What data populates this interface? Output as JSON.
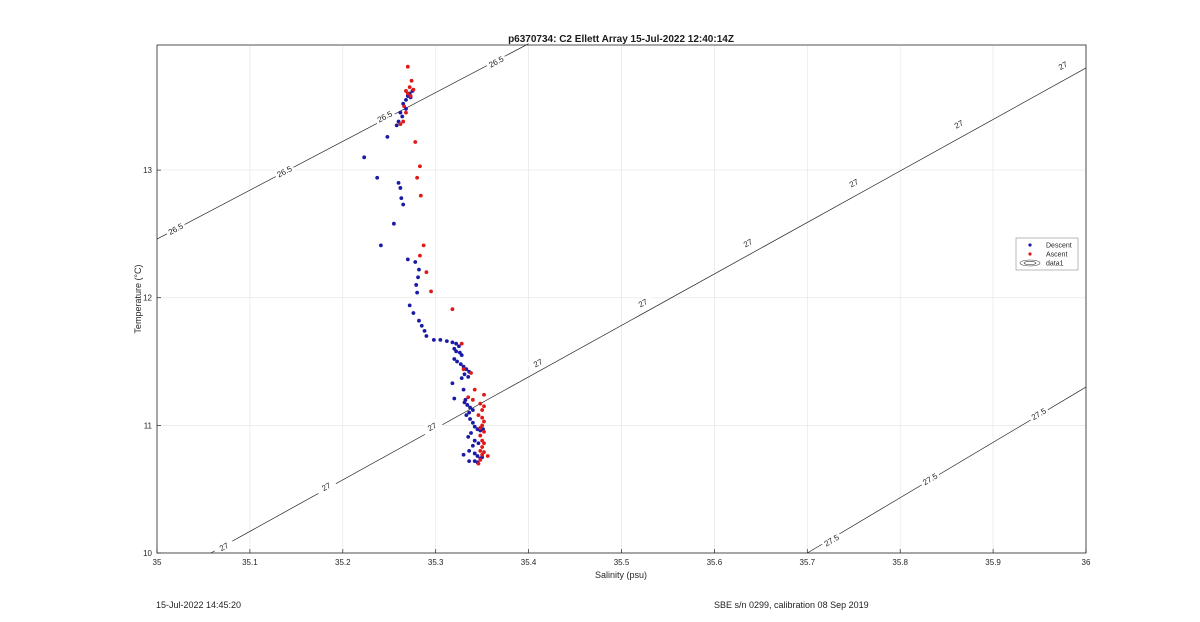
{
  "chart_data": {
    "type": "scatter",
    "title": "p6370734: C2 Ellett Array 15-Jul-2022 12:40:14Z",
    "xlabel": "Salinity (psu)",
    "ylabel": "Temperature (°C)",
    "xlim": [
      35,
      36
    ],
    "ylim": [
      10,
      13.98
    ],
    "grid": true,
    "legend_position": "right",
    "xticks": [
      35,
      35.1,
      35.2,
      35.3,
      35.4,
      35.5,
      35.6,
      35.7,
      35.8,
      35.9,
      36
    ],
    "xtick_labels": [
      "35",
      "35.1",
      "35.2",
      "35.3",
      "35.4",
      "35.5",
      "35.6",
      "35.7",
      "35.8",
      "35.9",
      "36"
    ],
    "yticks": [
      10,
      11,
      12,
      13
    ],
    "ytick_labels": [
      "10",
      "11",
      "12",
      "13"
    ],
    "series": [
      {
        "name": "Descent",
        "color": "#1a1aa6",
        "marker": "dot",
        "points": [
          [
            35.262,
            13.45
          ],
          [
            35.265,
            13.52
          ],
          [
            35.268,
            13.55
          ],
          [
            35.27,
            13.58
          ],
          [
            35.272,
            13.6
          ],
          [
            35.275,
            13.62
          ],
          [
            35.273,
            13.57
          ],
          [
            35.268,
            13.48
          ],
          [
            35.264,
            13.42
          ],
          [
            35.26,
            13.38
          ],
          [
            35.258,
            13.35
          ],
          [
            35.248,
            13.26
          ],
          [
            35.223,
            13.1
          ],
          [
            35.237,
            12.94
          ],
          [
            35.26,
            12.9
          ],
          [
            35.262,
            12.86
          ],
          [
            35.263,
            12.78
          ],
          [
            35.265,
            12.73
          ],
          [
            35.255,
            12.58
          ],
          [
            35.241,
            12.41
          ],
          [
            35.27,
            12.3
          ],
          [
            35.278,
            12.28
          ],
          [
            35.282,
            12.22
          ],
          [
            35.281,
            12.16
          ],
          [
            35.279,
            12.1
          ],
          [
            35.28,
            12.04
          ],
          [
            35.272,
            11.94
          ],
          [
            35.276,
            11.88
          ],
          [
            35.282,
            11.82
          ],
          [
            35.285,
            11.78
          ],
          [
            35.288,
            11.74
          ],
          [
            35.29,
            11.7
          ],
          [
            35.298,
            11.67
          ],
          [
            35.305,
            11.67
          ],
          [
            35.312,
            11.66
          ],
          [
            35.318,
            11.65
          ],
          [
            35.322,
            11.64
          ],
          [
            35.325,
            11.62
          ],
          [
            35.32,
            11.6
          ],
          [
            35.322,
            11.58
          ],
          [
            35.326,
            11.57
          ],
          [
            35.328,
            11.55
          ],
          [
            35.32,
            11.52
          ],
          [
            35.323,
            11.5
          ],
          [
            35.327,
            11.48
          ],
          [
            35.33,
            11.46
          ],
          [
            35.333,
            11.44
          ],
          [
            35.336,
            11.42
          ],
          [
            35.331,
            11.4
          ],
          [
            35.335,
            11.38
          ],
          [
            35.328,
            11.37
          ],
          [
            35.318,
            11.33
          ],
          [
            35.33,
            11.28
          ],
          [
            35.332,
            11.2
          ],
          [
            35.32,
            11.21
          ],
          [
            35.331,
            11.18
          ],
          [
            35.334,
            11.16
          ],
          [
            35.337,
            11.14
          ],
          [
            35.34,
            11.12
          ],
          [
            35.336,
            11.1
          ],
          [
            35.333,
            11.08
          ],
          [
            35.337,
            11.05
          ],
          [
            35.34,
            11.02
          ],
          [
            35.342,
            10.99
          ],
          [
            35.345,
            10.97
          ],
          [
            35.348,
            10.96
          ],
          [
            35.351,
            10.97
          ],
          [
            35.338,
            10.94
          ],
          [
            35.335,
            10.91
          ],
          [
            35.342,
            10.88
          ],
          [
            35.346,
            10.86
          ],
          [
            35.34,
            10.84
          ],
          [
            35.336,
            10.8
          ],
          [
            35.33,
            10.77
          ],
          [
            35.342,
            10.78
          ],
          [
            35.345,
            10.76
          ],
          [
            35.35,
            10.75
          ],
          [
            35.348,
            10.74
          ],
          [
            35.336,
            10.72
          ],
          [
            35.342,
            10.72
          ],
          [
            35.345,
            10.71
          ]
        ]
      },
      {
        "name": "Ascent",
        "color": "#e01818",
        "marker": "dot",
        "points": [
          [
            35.27,
            13.81
          ],
          [
            35.274,
            13.7
          ],
          [
            35.272,
            13.65
          ],
          [
            35.268,
            13.62
          ],
          [
            35.276,
            13.63
          ],
          [
            35.27,
            13.6
          ],
          [
            35.273,
            13.58
          ],
          [
            35.266,
            13.5
          ],
          [
            35.268,
            13.45
          ],
          [
            35.265,
            13.38
          ],
          [
            35.262,
            13.36
          ],
          [
            35.278,
            13.22
          ],
          [
            35.283,
            13.03
          ],
          [
            35.28,
            12.94
          ],
          [
            35.284,
            12.8
          ],
          [
            35.287,
            12.41
          ],
          [
            35.283,
            12.33
          ],
          [
            35.29,
            12.2
          ],
          [
            35.295,
            12.05
          ],
          [
            35.318,
            11.91
          ],
          [
            35.328,
            11.64
          ],
          [
            35.33,
            11.44
          ],
          [
            35.338,
            11.41
          ],
          [
            35.342,
            11.28
          ],
          [
            35.352,
            11.24
          ],
          [
            35.335,
            11.22
          ],
          [
            35.34,
            11.2
          ],
          [
            35.348,
            11.17
          ],
          [
            35.352,
            11.15
          ],
          [
            35.35,
            11.12
          ],
          [
            35.346,
            11.08
          ],
          [
            35.35,
            11.06
          ],
          [
            35.352,
            11.03
          ],
          [
            35.35,
            11.0
          ],
          [
            35.348,
            10.98
          ],
          [
            35.352,
            10.95
          ],
          [
            35.348,
            10.92
          ],
          [
            35.35,
            10.88
          ],
          [
            35.352,
            10.86
          ],
          [
            35.35,
            10.83
          ],
          [
            35.348,
            10.8
          ],
          [
            35.352,
            10.79
          ],
          [
            35.35,
            10.77
          ],
          [
            35.356,
            10.76
          ],
          [
            35.348,
            10.73
          ],
          [
            35.346,
            10.7
          ]
        ]
      },
      {
        "name": "data1",
        "color": "#222222",
        "marker": "contour",
        "contours": [
          {
            "level": 26.5,
            "label": "26.5",
            "line": [
              [
                35.0,
                12.46
              ],
              [
                35.4,
                13.99
              ]
            ],
            "label_positions": [
              [
                35.02,
                12.54
              ],
              [
                35.137,
                12.99
              ],
              [
                35.245,
                13.42
              ],
              [
                35.365,
                13.85
              ]
            ]
          },
          {
            "level": 27.0,
            "label": "27",
            "line": [
              [
                35.058,
                10.0
              ],
              [
                36.0,
                13.8
              ]
            ],
            "label_positions": [
              [
                35.072,
                10.05
              ],
              [
                35.182,
                10.52
              ],
              [
                35.296,
                10.99
              ],
              [
                35.41,
                11.49
              ],
              [
                35.523,
                11.96
              ],
              [
                35.636,
                12.43
              ],
              [
                35.75,
                12.9
              ],
              [
                35.863,
                13.36
              ],
              [
                35.975,
                13.82
              ]
            ]
          },
          {
            "level": 27.5,
            "label": "27.5",
            "line": [
              [
                35.7,
                10.0
              ],
              [
                36.0,
                11.3
              ]
            ],
            "label_positions": [
              [
                35.726,
                10.1
              ],
              [
                35.832,
                10.58
              ],
              [
                35.949,
                11.09
              ]
            ]
          }
        ]
      }
    ]
  },
  "footer": {
    "left": "15-Jul-2022 14:45:20",
    "right": "SBE s/n 0299, calibration 08 Sep 2019"
  }
}
